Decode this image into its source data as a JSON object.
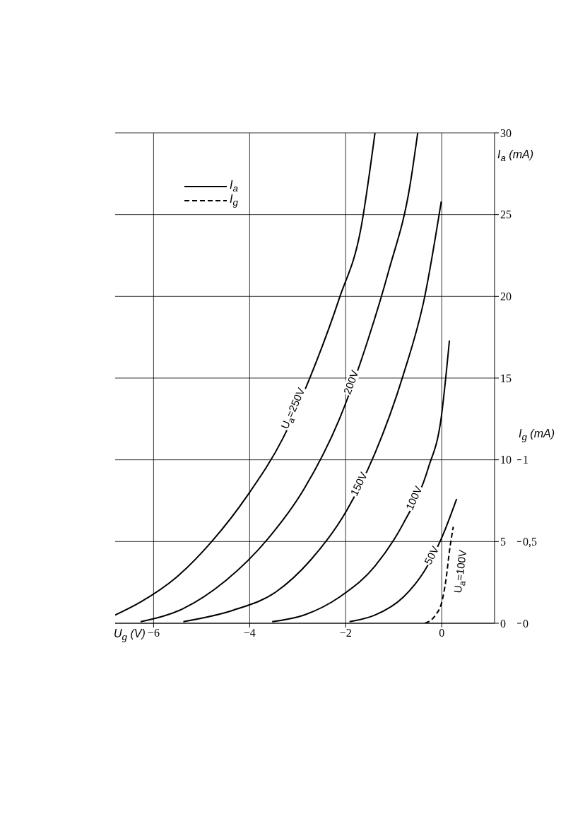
{
  "chart_data": {
    "type": "line",
    "xlabel": "U$_{g}$ (V)",
    "ylabel": "I$_{a}$ (mA)",
    "y2label": "I$_{g}$ (mA)",
    "xlim": [
      -6.8,
      1.1
    ],
    "xticks": [
      {
        "value": -6,
        "label": "−6"
      },
      {
        "value": -4,
        "label": "−4"
      },
      {
        "value": -2,
        "label": "−2"
      },
      0
    ],
    "ylim": [
      0,
      30
    ],
    "yticks": [
      0,
      5,
      10,
      15,
      20,
      25,
      30
    ],
    "y2lim": [
      0,
      3
    ],
    "y2ticks": [
      0,
      {
        "value": 0.5,
        "label": "0,5"
      },
      1
    ],
    "grid": true,
    "marker": "none",
    "annotations": [
      "I$_{a}$",
      "I$_{g}$"
    ],
    "series": [
      {
        "name": "U$_{a}$=250V",
        "color": "#000000",
        "line_style": "solid",
        "x": [
          -6.8,
          -6.27,
          -5.53,
          -4.79,
          -4.05,
          -3.31,
          -2.72,
          -2.13,
          -1.68,
          -1.39
        ],
        "values": [
          0.5,
          1.3,
          2.8,
          5.0,
          7.8,
          11.3,
          15.2,
          19.9,
          24.2,
          30
        ]
      },
      {
        "name": "200V",
        "color": "#000000",
        "line_style": "solid",
        "x": [
          -6.27,
          -5.38,
          -4.5,
          -3.61,
          -2.87,
          -2.13,
          -1.54,
          -1.1,
          -0.66,
          -0.5
        ],
        "values": [
          0.1,
          0.9,
          2.6,
          5.2,
          8.2,
          12.5,
          17.3,
          21.6,
          26.8,
          30
        ]
      },
      {
        "name": "150V",
        "color": "#000000",
        "line_style": "solid",
        "x": [
          -5.38,
          -4.34,
          -3.46,
          -2.72,
          -1.98,
          -1.39,
          -0.8,
          -0.36,
          -0.01
        ],
        "values": [
          0.1,
          0.8,
          1.9,
          3.9,
          6.9,
          10.4,
          15.2,
          19.9,
          25.8
        ]
      },
      {
        "name": "100V",
        "color": "#000000",
        "line_style": "solid",
        "x": [
          -3.53,
          -2.87,
          -2.13,
          -1.39,
          -0.8,
          -0.28,
          -0.01,
          0.16
        ],
        "values": [
          0.1,
          0.5,
          1.6,
          3.5,
          6.1,
          9.5,
          12.6,
          17.3
        ]
      },
      {
        "name": "50V",
        "color": "#000000",
        "line_style": "solid",
        "x": [
          -1.92,
          -1.39,
          -0.8,
          -0.36,
          0.01,
          0.31
        ],
        "values": [
          0.1,
          0.5,
          1.6,
          3.2,
          5.3,
          7.6
        ]
      },
      {
        "name": "U$_{a}$=100V",
        "color": "#000000",
        "line_style": "dashed",
        "axis": "y2",
        "x": [
          -0.35,
          -0.13,
          0.01,
          0.09,
          0.16,
          0.24
        ],
        "values": [
          0,
          0.05,
          0.14,
          0.27,
          0.44,
          0.59
        ]
      }
    ]
  }
}
